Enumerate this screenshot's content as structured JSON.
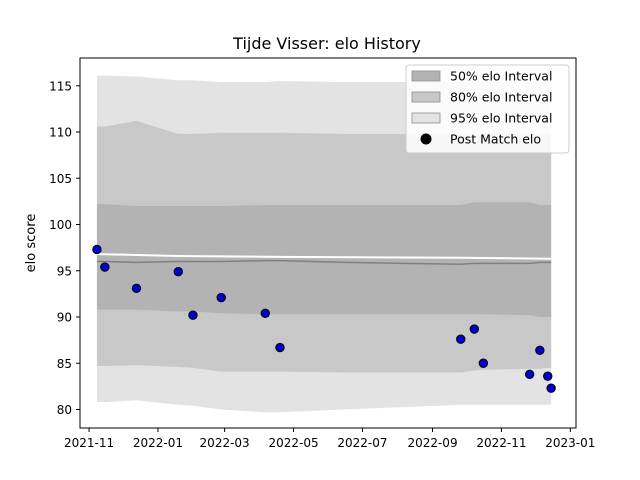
{
  "chart_data": {
    "type": "area",
    "title": "Tijde Visser: elo History",
    "xlabel": "",
    "ylabel": "elo score",
    "xlim": [
      "2021-10-24",
      "2023-01-06"
    ],
    "ylim": [
      78,
      118
    ],
    "x_ticks": [
      "2021-11-01",
      "2022-01-01",
      "2022-03-01",
      "2022-05-01",
      "2022-07-01",
      "2022-09-01",
      "2022-11-01",
      "2023-01-01"
    ],
    "x_tick_labels": [
      "2021-11",
      "2022-01",
      "2022-03",
      "2022-05",
      "2022-07",
      "2022-09",
      "2022-11",
      "2023-01"
    ],
    "y_ticks": [
      80,
      85,
      90,
      95,
      100,
      105,
      110,
      115
    ],
    "grid": false,
    "legend_position": "top-right",
    "legend": [
      {
        "label": "50% elo Interval",
        "kind": "band",
        "color": "#b3b3b3"
      },
      {
        "label": "80% elo Interval",
        "kind": "band",
        "color": "#c8c8c8"
      },
      {
        "label": "95% elo Interval",
        "kind": "band",
        "color": "#e3e3e3"
      },
      {
        "label": "Post Match elo",
        "kind": "point",
        "color": "#000000"
      }
    ],
    "bands": {
      "dates": [
        "2021-11-08",
        "2021-11-15",
        "2021-12-13",
        "2022-01-19",
        "2022-02-01",
        "2022-02-26",
        "2022-04-06",
        "2022-04-19",
        "2022-06-15",
        "2022-09-26",
        "2022-10-08",
        "2022-10-16",
        "2022-11-26",
        "2022-12-05",
        "2022-12-12",
        "2022-12-15"
      ],
      "mean": [
        96.0,
        96.0,
        95.9,
        96.0,
        96.0,
        96.0,
        96.1,
        96.1,
        95.9,
        95.7,
        95.8,
        95.8,
        95.8,
        95.9,
        95.9,
        95.9
      ],
      "p95_low": [
        80.8,
        80.8,
        81.0,
        80.5,
        80.4,
        80.0,
        79.7,
        79.7,
        80.0,
        80.5,
        80.5,
        80.5,
        80.5,
        80.5,
        80.5,
        80.5
      ],
      "p80_low": [
        84.7,
        84.7,
        84.8,
        84.6,
        84.5,
        84.1,
        84.1,
        84.1,
        84.0,
        84.0,
        84.2,
        84.3,
        84.4,
        84.4,
        84.5,
        84.5
      ],
      "p50_low": [
        90.8,
        90.8,
        90.8,
        90.6,
        90.6,
        90.4,
        90.3,
        90.3,
        90.3,
        90.3,
        90.3,
        90.3,
        90.2,
        90.0,
        90.0,
        90.0
      ],
      "p50_high": [
        102.2,
        102.2,
        102.0,
        102.0,
        102.0,
        102.0,
        102.1,
        102.1,
        102.1,
        102.1,
        102.4,
        102.4,
        102.4,
        102.1,
        102.1,
        102.1
      ],
      "p80_high": [
        110.6,
        110.6,
        111.2,
        109.8,
        109.8,
        109.9,
        109.9,
        109.9,
        109.8,
        109.8,
        109.8,
        109.8,
        109.8,
        109.8,
        109.8,
        109.8
      ],
      "p95_high": [
        116.1,
        116.1,
        116.0,
        115.6,
        115.6,
        115.4,
        115.4,
        115.5,
        115.4,
        115.4,
        115.4,
        115.4,
        115.4,
        115.4,
        115.4,
        115.4
      ]
    },
    "median_line": {
      "dates": [
        "2021-11-08",
        "2022-01-19",
        "2022-04-19",
        "2022-09-26",
        "2022-12-15"
      ],
      "values": [
        96.8,
        96.6,
        96.5,
        96.4,
        96.3
      ]
    },
    "points": {
      "dates": [
        "2021-11-08",
        "2021-11-15",
        "2021-12-13",
        "2022-01-19",
        "2022-02-01",
        "2022-02-26",
        "2022-04-06",
        "2022-04-19",
        "2022-09-26",
        "2022-10-08",
        "2022-10-16",
        "2022-11-26",
        "2022-12-05",
        "2022-12-12",
        "2022-12-15"
      ],
      "values": [
        97.3,
        95.4,
        93.1,
        94.9,
        90.2,
        92.1,
        90.4,
        86.7,
        87.6,
        88.7,
        85.0,
        83.8,
        86.4,
        83.6,
        82.3
      ]
    },
    "colors": {
      "band95": "#e3e3e3",
      "band80": "#c8c8c8",
      "band50": "#b3b3b3",
      "mean_line": "#808080",
      "median_line": "#ffffff",
      "point_fill": "#0000cc",
      "point_edge": "#000000"
    }
  }
}
